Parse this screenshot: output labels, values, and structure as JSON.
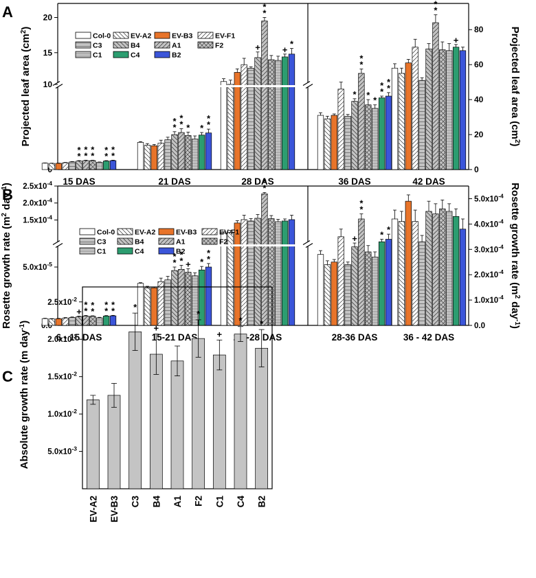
{
  "colors": {
    "Col-0": "#ffffff",
    "EV-A2": "#ffffff",
    "EV-B3": "#e8742a",
    "EV-F1": "#ffffff",
    "C3": "#c4c4c4",
    "B4": "#c4c4c4",
    "A1": "#c4c4c4",
    "F2": "#c4c4c4",
    "C1": "#c4c4c4",
    "C4": "#2c9d70",
    "B2": "#3b55d9",
    "bar_c": "#c4c4c4"
  },
  "chart_data": [
    {
      "panel": "A",
      "type": "bar",
      "ylabel_left": "Projected leaf area (cm²)",
      "ylabel_right": "Projected leaf area (cm²)",
      "left_axis": {
        "lower": [
          0,
          10
        ],
        "upper": [
          10,
          22
        ],
        "ticks_lower": [
          0,
          10
        ],
        "ticks_upper": [
          10,
          15,
          20
        ],
        "tick_labels": [
          "0",
          "10",
          "15",
          "20"
        ]
      },
      "right_axis": {
        "range": [
          0,
          95
        ],
        "ticks": [
          0,
          20,
          40,
          60,
          80
        ],
        "tick_labels": [
          "0",
          "20",
          "40",
          "60",
          "80"
        ]
      },
      "series_names": [
        "Col-0",
        "EV-A2",
        "EV-B3",
        "EV-F1",
        "C3",
        "B4",
        "A1",
        "F2",
        "C1",
        "C4",
        "B2"
      ],
      "groups": [
        {
          "label": "15 DAS",
          "axis": "left",
          "values": [
            0.75,
            0.72,
            0.73,
            0.8,
            0.9,
            1.0,
            1.05,
            1.05,
            0.85,
            1.0,
            1.05
          ],
          "errors": [
            0.03,
            0.03,
            0.03,
            0.04,
            0.04,
            0.05,
            0.05,
            0.05,
            0.04,
            0.05,
            0.05
          ],
          "sig": [
            "",
            "",
            "",
            "",
            "",
            "**",
            "**",
            "**",
            "",
            "**",
            "**"
          ]
        },
        {
          "label": "21 DAS",
          "axis": "left",
          "values": [
            3.2,
            2.85,
            2.8,
            3.1,
            3.5,
            4.1,
            4.35,
            4.0,
            3.6,
            4.05,
            4.3
          ],
          "errors": [
            0.08,
            0.2,
            0.15,
            0.35,
            0.3,
            0.35,
            0.45,
            0.4,
            0.35,
            0.3,
            0.45
          ],
          "sig": [
            "",
            "",
            "",
            "",
            "",
            "**",
            "**",
            "*",
            "",
            "*",
            "**"
          ]
        },
        {
          "label": "28 DAS",
          "axis": "left",
          "values": [
            10.9,
            10.5,
            12.2,
            13.3,
            12.8,
            14.3,
            19.5,
            14.0,
            13.9,
            14.4,
            14.8
          ],
          "errors": [
            0.4,
            0.6,
            0.5,
            0.9,
            0.2,
            0.8,
            0.5,
            0.6,
            0.6,
            0.4,
            0.8
          ],
          "sig": [
            "",
            "",
            "",
            "",
            "",
            "+",
            "**",
            "",
            "",
            "+",
            "*"
          ]
        },
        {
          "label": "36 DAS",
          "axis": "right",
          "values": [
            31,
            29,
            31,
            46,
            30.5,
            39,
            55,
            37,
            35,
            41,
            42
          ],
          "errors": [
            1.5,
            1.5,
            0.8,
            4,
            1,
            1.5,
            2.5,
            3,
            2,
            1,
            2
          ],
          "sig": [
            "",
            "",
            "",
            "",
            "",
            "*",
            "**",
            "*",
            "*",
            "**",
            "**"
          ]
        },
        {
          "label": "42 DAS",
          "axis": "right",
          "values": [
            58,
            55,
            61,
            70,
            51,
            69,
            84,
            68.5,
            68,
            70,
            68
          ],
          "errors": [
            2.5,
            3,
            2,
            4.5,
            1.5,
            3,
            4.5,
            4.5,
            4,
            1.5,
            2
          ],
          "sig": [
            "",
            "",
            "",
            "",
            "",
            "",
            "**",
            "",
            "",
            "+",
            ""
          ]
        }
      ]
    },
    {
      "panel": "B",
      "type": "bar",
      "ylabel_left": "Rosette growth rate (m² day⁻¹)",
      "ylabel_right": "Rosette growth rate (m² day⁻¹)",
      "left_axis": {
        "lower": [
          0,
          7e-05
        ],
        "upper": [
          7e-05,
          0.00025
        ],
        "tick_labels": [
          "0.0",
          "5.0x10⁻⁵",
          "1.5x10⁻⁴",
          "2.0x10⁻⁴",
          "2.5x10⁻⁴"
        ],
        "tick_values": [
          0,
          5e-05,
          0.00015,
          0.0002,
          0.00025
        ]
      },
      "right_axis": {
        "range": [
          0,
          0.00055
        ],
        "tick_labels": [
          "0.0",
          "1.0x10⁻⁴",
          "2.0x10⁻⁴",
          "3.0x10⁻⁴",
          "4.0x10⁻⁴",
          "5.0x10⁻⁴"
        ],
        "tick_values": [
          0,
          0.0001,
          0.0002,
          0.0003,
          0.0004,
          0.0005
        ]
      },
      "series_names": [
        "Col-0",
        "EV-A2",
        "EV-B3",
        "EV-F1",
        "C3",
        "B4",
        "A1",
        "F2",
        "C1",
        "C4",
        "B2"
      ],
      "groups": [
        {
          "label": "6 - 15 DAS",
          "axis": "left",
          "values": [
            5.8e-06,
            5.5e-06,
            5.7e-06,
            6.3e-06,
            6.8e-06,
            7.5e-06,
            8e-06,
            7.8e-06,
            6.5e-06,
            8e-06,
            8.2e-06
          ],
          "errors": [
            3e-07,
            3e-07,
            3e-07,
            4e-07,
            4e-07,
            4e-07,
            5e-07,
            4e-07,
            4e-07,
            4e-07,
            4e-07
          ],
          "sig": [
            "",
            "",
            "",
            "",
            "",
            "+",
            "**",
            "**",
            "",
            "**",
            "**"
          ]
        },
        {
          "label": "15-21 DAS",
          "axis": "left",
          "values": [
            3.6e-05,
            3.2e-05,
            3.22e-05,
            3.75e-05,
            3.9e-05,
            4.7e-05,
            4.8e-05,
            4.55e-05,
            4.25e-05,
            4.75e-05,
            5e-05
          ],
          "errors": [
            6e-07,
            1.5e-06,
            8e-07,
            3e-06,
            3e-06,
            3e-06,
            3.5e-06,
            3e-06,
            2.5e-06,
            3e-06,
            3e-06
          ],
          "sig": [
            "",
            "",
            "",
            "",
            "",
            "**",
            "**",
            "+",
            "",
            "*",
            "**"
          ]
        },
        {
          "label": "21 -28 DAS",
          "axis": "left",
          "values": [
            0.000111,
            0.000113,
            0.000141,
            0.000151,
            0.000147,
            0.000155,
            0.000227,
            0.000154,
            0.000145,
            0.000147,
            0.000151
          ],
          "errors": [
            4e-06,
            6e-06,
            7e-06,
            1.3e-05,
            7e-06,
            1.1e-05,
            4e-06,
            9e-06,
            7e-06,
            6e-06,
            1.3e-05
          ],
          "sig": [
            "",
            "",
            "",
            "",
            "",
            "",
            "**",
            "",
            "",
            "",
            ""
          ]
        },
        {
          "label": "28-36 DAS",
          "axis": "right",
          "values": [
            0.00028,
            0.00024,
            0.00025,
            0.00035,
            0.00024,
            0.00031,
            0.00042,
            0.00029,
            0.00027,
            0.00033,
            0.00034
          ],
          "errors": [
            1.5e-05,
            1.5e-05,
            1e-05,
            3e-05,
            1e-05,
            1.5e-05,
            2e-05,
            2.5e-05,
            2e-05,
            1e-05,
            2e-05
          ],
          "sig": [
            "",
            "",
            "",
            "",
            "",
            "+",
            "**",
            "",
            "",
            "*",
            "*"
          ]
        },
        {
          "label": "36 - 42 DAS",
          "axis": "right",
          "values": [
            0.00042,
            0.00041,
            0.00049,
            0.00041,
            0.00033,
            0.00045,
            0.00044,
            0.00046,
            0.00045,
            0.00043,
            0.00038
          ],
          "errors": [
            3.5e-05,
            4e-05,
            2.5e-05,
            4.5e-05,
            2.5e-05,
            4e-05,
            4e-05,
            3.5e-05,
            3e-05,
            3e-05,
            4e-05
          ],
          "sig": [
            "",
            "",
            "",
            "",
            "",
            "",
            "",
            "",
            "",
            "",
            ""
          ]
        }
      ]
    },
    {
      "panel": "C",
      "type": "bar",
      "ylabel": "Absolute growth rate (m day⁻¹)",
      "ylim": [
        0,
        0.027
      ],
      "ticks": [
        0.005,
        0.01,
        0.015,
        0.02,
        0.025
      ],
      "tick_labels": [
        "5.0x10⁻³",
        "1.0x10⁻²",
        "1.5x10⁻²",
        "2.0x10⁻²",
        "2.5x10⁻²"
      ],
      "categories": [
        "EV-A2",
        "EV-B3",
        "C3",
        "B4",
        "A1",
        "F2",
        "C1",
        "C4",
        "B2"
      ],
      "values": [
        0.0119,
        0.0125,
        0.021,
        0.018,
        0.0171,
        0.0201,
        0.0179,
        0.0207,
        0.0188
      ],
      "errors": [
        0.0006,
        0.0016,
        0.0025,
        0.0027,
        0.002,
        0.0025,
        0.002,
        0.001,
        0.0025
      ],
      "sig": [
        "",
        "",
        "*",
        "+",
        "",
        "*",
        "+",
        "*",
        "*"
      ]
    }
  ],
  "legend": {
    "rows": [
      [
        "Col-0",
        "EV-A2",
        "EV-B3",
        "EV-F1"
      ],
      [
        "C3",
        "B4",
        "A1",
        "F2"
      ],
      [
        "C1",
        "C4",
        "B2"
      ]
    ]
  }
}
